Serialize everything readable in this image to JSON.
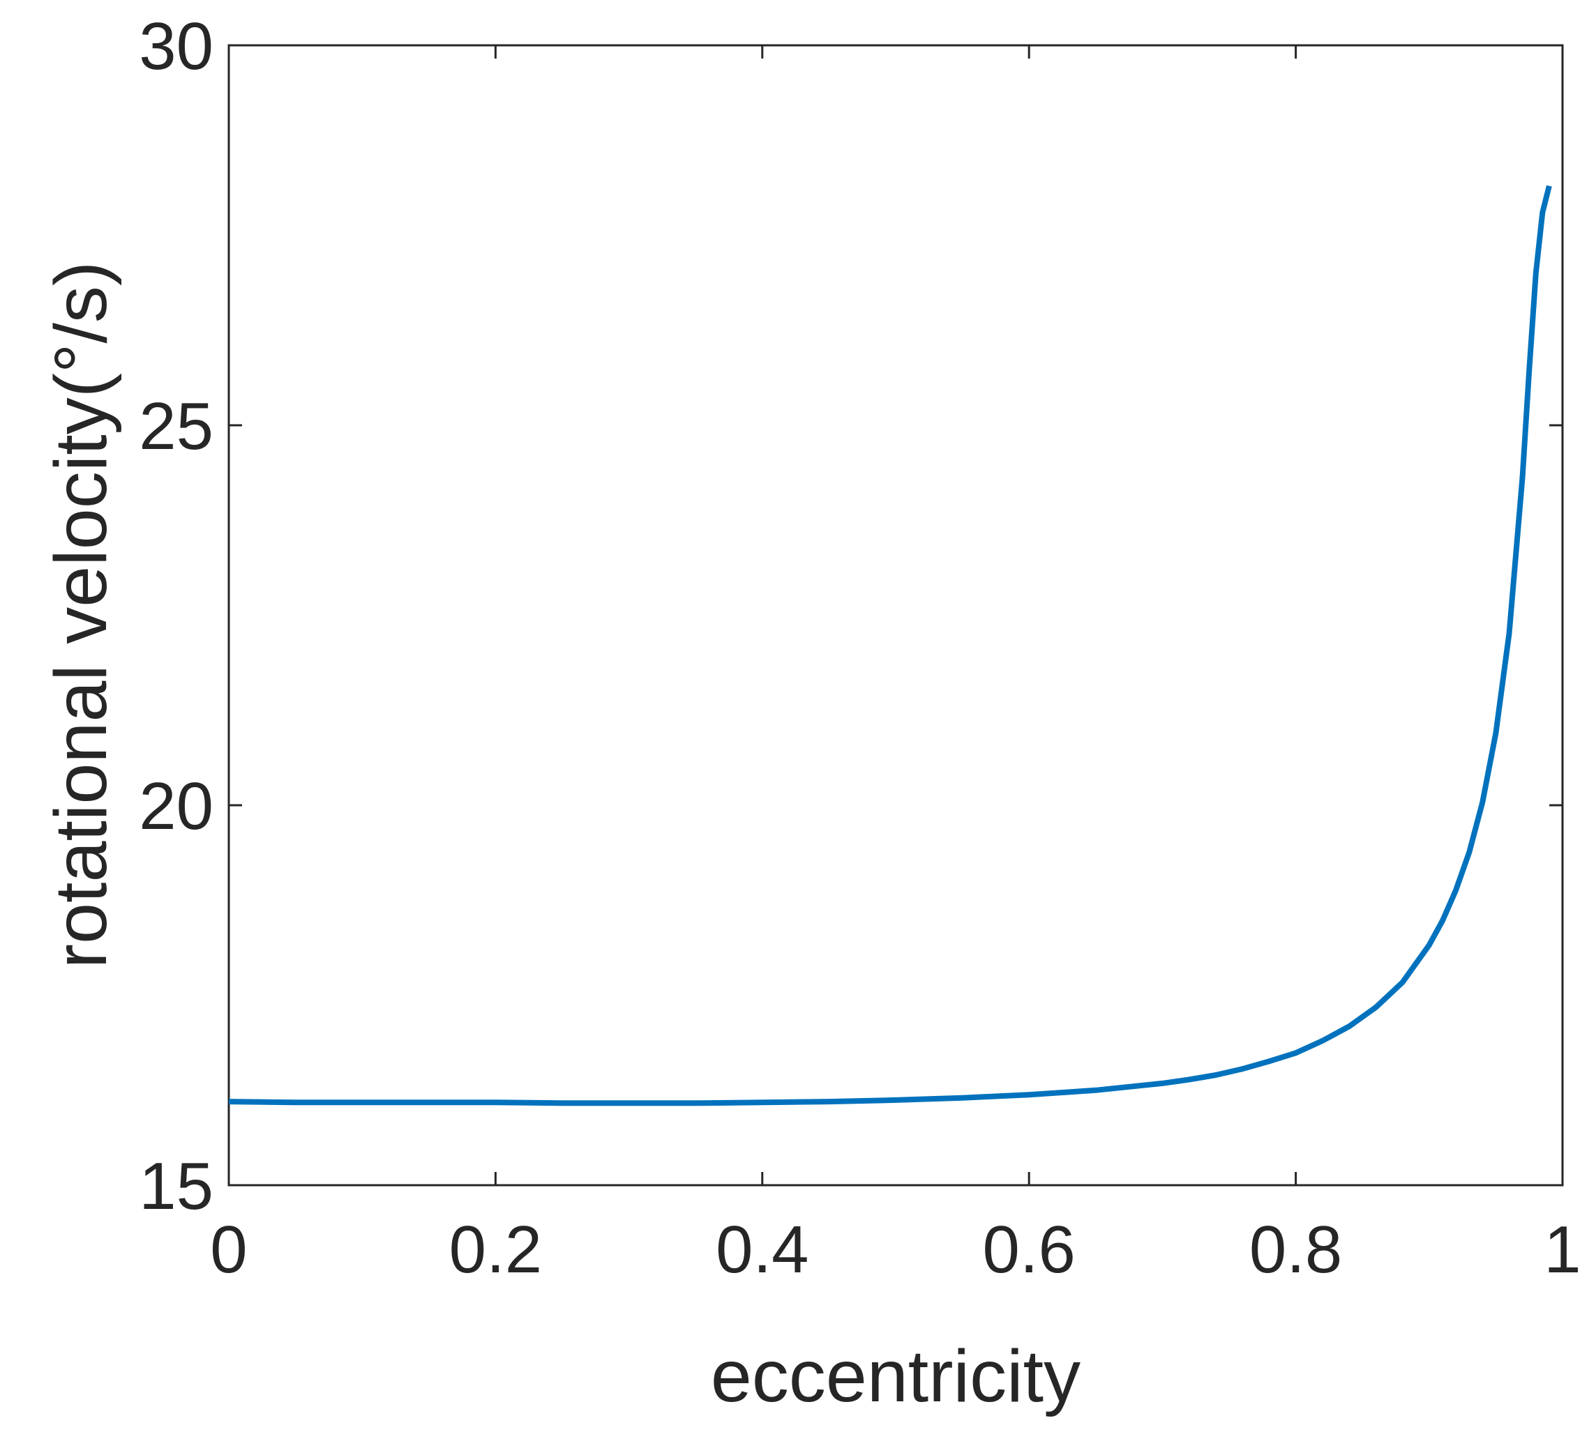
{
  "chart_data": {
    "type": "line",
    "xlabel": "eccentricity",
    "ylabel": "rotational velocity(°/s)",
    "xlim": [
      0,
      1
    ],
    "ylim": [
      15,
      30
    ],
    "xticks": [
      0,
      0.2,
      0.4,
      0.6,
      0.8,
      1
    ],
    "xtick_labels": [
      "0",
      "0.2",
      "0.4",
      "0.6",
      "0.8",
      "1"
    ],
    "yticks": [
      15,
      20,
      25,
      30
    ],
    "ytick_labels": [
      "15",
      "20",
      "25",
      "30"
    ],
    "grid": false,
    "box": true,
    "series": [
      {
        "color": "#0072BD",
        "x": [
          0,
          0.05,
          0.1,
          0.15,
          0.2,
          0.25,
          0.3,
          0.35,
          0.4,
          0.45,
          0.5,
          0.55,
          0.6,
          0.65,
          0.7,
          0.72,
          0.74,
          0.76,
          0.78,
          0.8,
          0.82,
          0.84,
          0.86,
          0.88,
          0.9,
          0.91,
          0.92,
          0.93,
          0.94,
          0.95,
          0.96,
          0.97,
          0.975,
          0.98,
          0.985,
          0.99
        ],
        "y": [
          16.1,
          16.09,
          16.09,
          16.09,
          16.09,
          16.08,
          16.08,
          16.08,
          16.09,
          16.1,
          16.12,
          16.15,
          16.19,
          16.25,
          16.34,
          16.39,
          16.45,
          16.53,
          16.63,
          16.74,
          16.9,
          17.09,
          17.34,
          17.67,
          18.16,
          18.48,
          18.88,
          19.38,
          20.04,
          20.95,
          22.26,
          24.32,
          25.72,
          27.0,
          27.8,
          28.15
        ]
      }
    ]
  }
}
